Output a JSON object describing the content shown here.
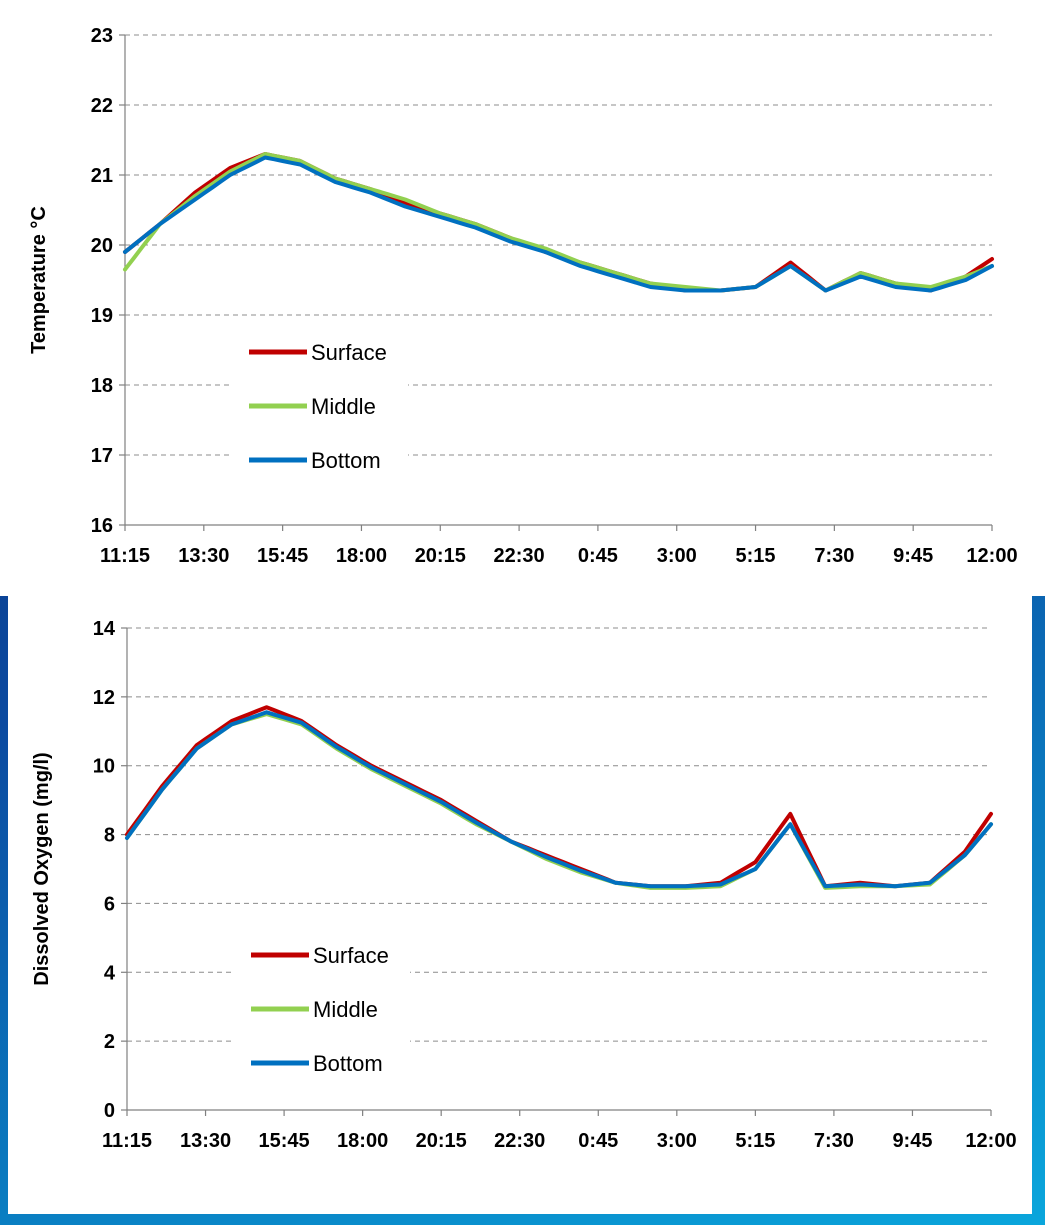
{
  "chart_data": [
    {
      "type": "line",
      "ylabel": "Temperature °C",
      "ylim": [
        16,
        23
      ],
      "yticks": [
        "16",
        "17",
        "18",
        "19",
        "20",
        "21",
        "22",
        "23"
      ],
      "x_tick_labels": [
        "11:15",
        "13:30",
        "15:45",
        "18:00",
        "20:15",
        "22:30",
        "0:45",
        "3:00",
        "5:15",
        "7:30",
        "9:45",
        "12:00"
      ],
      "grid": true,
      "legend_position": "center-left",
      "x_hours": [
        0,
        1,
        2,
        3,
        4,
        5,
        6,
        7,
        8,
        9,
        10,
        11,
        12,
        13,
        14,
        15,
        16,
        17,
        18,
        19,
        20,
        21,
        22,
        23,
        24,
        24.75
      ],
      "series": [
        {
          "name": "Surface",
          "color": "#c00000",
          "values": [
            19.9,
            20.3,
            20.75,
            21.1,
            21.3,
            21.2,
            20.95,
            20.8,
            20.6,
            20.45,
            20.3,
            20.1,
            19.9,
            19.75,
            19.6,
            19.45,
            19.35,
            19.35,
            19.4,
            19.75,
            19.35,
            19.6,
            19.45,
            19.35,
            19.55,
            19.8
          ]
        },
        {
          "name": "Middle",
          "color": "#92d050",
          "values": [
            19.65,
            20.3,
            20.7,
            21.05,
            21.3,
            21.2,
            20.95,
            20.8,
            20.65,
            20.45,
            20.3,
            20.1,
            19.95,
            19.75,
            19.6,
            19.45,
            19.4,
            19.35,
            19.4,
            19.7,
            19.35,
            19.6,
            19.45,
            19.4,
            19.55,
            19.7
          ]
        },
        {
          "name": "Bottom",
          "color": "#0070c0",
          "values": [
            19.9,
            20.3,
            20.65,
            21.0,
            21.25,
            21.15,
            20.9,
            20.75,
            20.55,
            20.4,
            20.25,
            20.05,
            19.9,
            19.7,
            19.55,
            19.4,
            19.35,
            19.35,
            19.4,
            19.7,
            19.35,
            19.55,
            19.4,
            19.35,
            19.5,
            19.7
          ]
        }
      ]
    },
    {
      "type": "line",
      "ylabel": "Dissolved Oxygen (mg/l)",
      "ylim": [
        0,
        14
      ],
      "yticks": [
        "0",
        "2",
        "4",
        "6",
        "8",
        "10",
        "12",
        "14"
      ],
      "x_tick_labels": [
        "11:15",
        "13:30",
        "15:45",
        "18:00",
        "20:15",
        "22:30",
        "0:45",
        "3:00",
        "5:15",
        "7:30",
        "9:45",
        "12:00"
      ],
      "grid": true,
      "legend_position": "bottom-left",
      "x_hours": [
        0,
        1,
        2,
        3,
        4,
        5,
        6,
        7,
        8,
        9,
        10,
        11,
        12,
        13,
        14,
        15,
        16,
        17,
        18,
        19,
        20,
        21,
        22,
        23,
        24,
        24.75
      ],
      "series": [
        {
          "name": "Surface",
          "color": "#c00000",
          "values": [
            8.0,
            9.4,
            10.6,
            11.3,
            11.7,
            11.3,
            10.6,
            10.0,
            9.5,
            9.0,
            8.4,
            7.8,
            7.4,
            7.0,
            6.6,
            6.5,
            6.5,
            6.6,
            7.2,
            8.6,
            6.5,
            6.6,
            6.5,
            6.6,
            7.5,
            8.6
          ]
        },
        {
          "name": "Middle",
          "color": "#92d050",
          "values": [
            7.9,
            9.3,
            10.5,
            11.2,
            11.5,
            11.2,
            10.5,
            9.9,
            9.4,
            8.9,
            8.3,
            7.8,
            7.3,
            6.9,
            6.6,
            6.45,
            6.45,
            6.5,
            7.0,
            8.3,
            6.45,
            6.5,
            6.5,
            6.55,
            7.4,
            8.3
          ]
        },
        {
          "name": "Bottom",
          "color": "#0070c0",
          "values": [
            7.9,
            9.3,
            10.5,
            11.2,
            11.55,
            11.25,
            10.55,
            9.95,
            9.45,
            8.95,
            8.35,
            7.8,
            7.35,
            6.95,
            6.6,
            6.5,
            6.5,
            6.55,
            7.0,
            8.3,
            6.5,
            6.55,
            6.5,
            6.6,
            7.4,
            8.3
          ]
        }
      ]
    }
  ]
}
